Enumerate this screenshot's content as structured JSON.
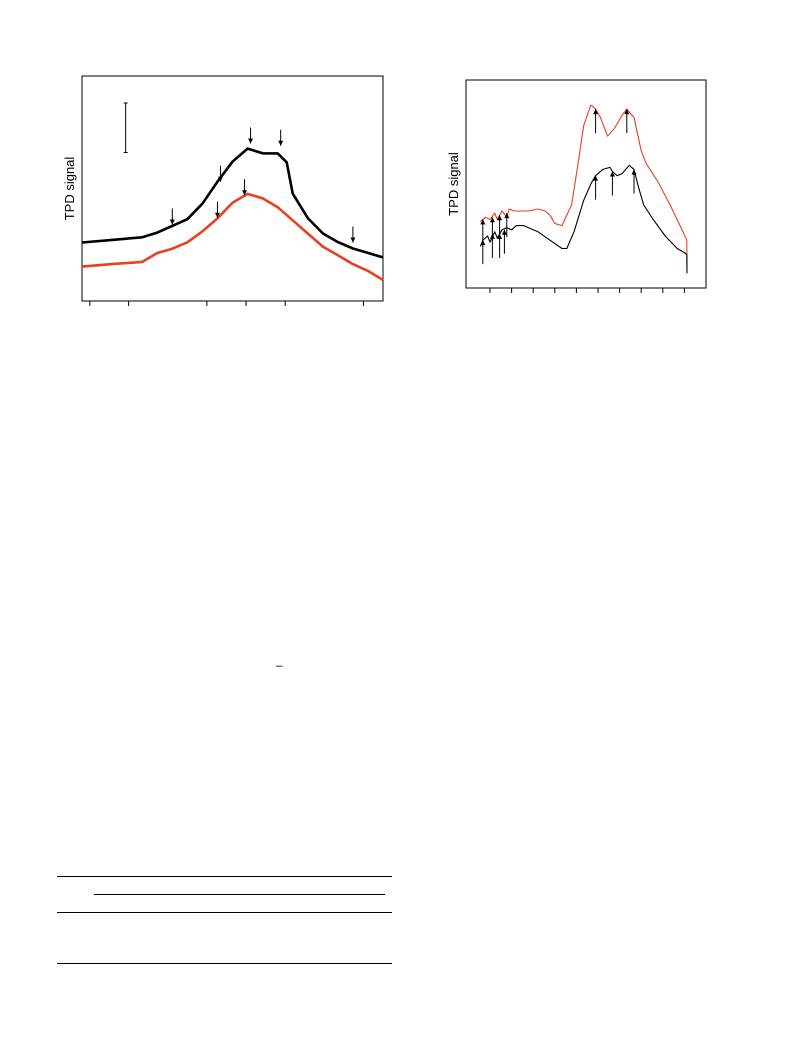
{
  "chart_data": [
    {
      "type": "line",
      "ylabel": "TPD signal",
      "xlabel": "",
      "legend": "none",
      "grid": false,
      "xlim": [
        0,
        100
      ],
      "ylim": [
        0,
        100
      ],
      "x_ticks": [
        2.6,
        15.5,
        41.5,
        54.5,
        67.5,
        93.5
      ],
      "scale_bar": {
        "y_top": 88,
        "y_bottom": 66
      },
      "series": [
        {
          "color": "#000000",
          "x": [
            0,
            10,
            20,
            25,
            30,
            35,
            40,
            45,
            50,
            55,
            60,
            65,
            68,
            70,
            75,
            80,
            85,
            90,
            95,
            100
          ],
          "y": [
            26,
            27,
            28,
            30,
            33,
            36,
            43,
            53,
            62,
            68,
            66,
            66,
            62,
            48,
            37,
            30,
            26,
            23,
            21,
            19
          ],
          "markers": [
            {
              "x": 30,
              "y": 34
            },
            {
              "x": 46,
              "y": 53
            },
            {
              "x": 56,
              "y": 70
            },
            {
              "x": 66,
              "y": 69
            },
            {
              "x": 90,
              "y": 26
            }
          ]
        },
        {
          "color": "#e84020",
          "x": [
            0,
            10,
            20,
            25,
            30,
            35,
            40,
            45,
            50,
            55,
            60,
            65,
            70,
            75,
            80,
            85,
            90,
            95,
            100
          ],
          "y": [
            15,
            16,
            17,
            21,
            23,
            26,
            31,
            37,
            44,
            48,
            46,
            42,
            36,
            30,
            24,
            20,
            16,
            13,
            9
          ],
          "markers": [
            {
              "x": 45,
              "y": 37
            },
            {
              "x": 54,
              "y": 47
            }
          ]
        }
      ]
    },
    {
      "type": "line",
      "ylabel": "TPD signal",
      "xlabel": "",
      "legend": "none",
      "grid": false,
      "xlim": [
        0,
        100
      ],
      "ylim": [
        0,
        100
      ],
      "x_ticks": [
        10,
        19,
        28,
        37,
        46,
        55,
        64,
        73,
        82,
        91
      ],
      "series": [
        {
          "color": "#e84020",
          "x": [
            6,
            8,
            10,
            12,
            13,
            15,
            17,
            18,
            20,
            22,
            26,
            30,
            33,
            35,
            37,
            40,
            44,
            47,
            49,
            52,
            54,
            56,
            59,
            62,
            65,
            67,
            70,
            73,
            75,
            80,
            85,
            90,
            92,
            92.1
          ],
          "y": [
            32,
            34,
            33,
            36,
            33,
            37,
            34,
            38,
            37,
            37,
            37,
            38,
            37,
            35,
            31,
            30,
            40,
            62,
            78,
            88,
            86,
            82,
            73,
            77,
            83,
            86,
            82,
            66,
            60,
            51,
            40,
            28,
            23,
            10
          ],
          "markers": [
            {
              "x": 7,
              "y": 33
            },
            {
              "x": 11,
              "y": 34
            },
            {
              "x": 14,
              "y": 35
            },
            {
              "x": 17,
              "y": 36
            },
            {
              "x": 54,
              "y": 86
            },
            {
              "x": 67,
              "y": 86
            }
          ]
        },
        {
          "color": "#000000",
          "x": [
            6,
            7,
            9,
            10,
            12,
            13,
            15,
            17,
            19,
            21,
            24,
            30,
            35,
            40,
            42,
            45,
            49,
            52,
            54,
            57,
            60,
            61,
            63,
            65,
            68,
            70,
            72,
            74,
            78,
            83,
            88,
            91,
            92,
            92.1
          ],
          "y": [
            20,
            23,
            25,
            22,
            27,
            24,
            28,
            29,
            28,
            30,
            30,
            27,
            23,
            19,
            19,
            27,
            42,
            50,
            54,
            57,
            58,
            56,
            54,
            55,
            59,
            57,
            48,
            40,
            33,
            25,
            19,
            17,
            16,
            7
          ],
          "markers": [
            {
              "x": 7,
              "y": 23
            },
            {
              "x": 11,
              "y": 26
            },
            {
              "x": 14,
              "y": 26
            },
            {
              "x": 16,
              "y": 28
            },
            {
              "x": 54,
              "y": 54
            },
            {
              "x": 61,
              "y": 56
            },
            {
              "x": 70,
              "y": 57
            }
          ]
        }
      ]
    }
  ],
  "text_fragments": {
    "minus": "–"
  }
}
